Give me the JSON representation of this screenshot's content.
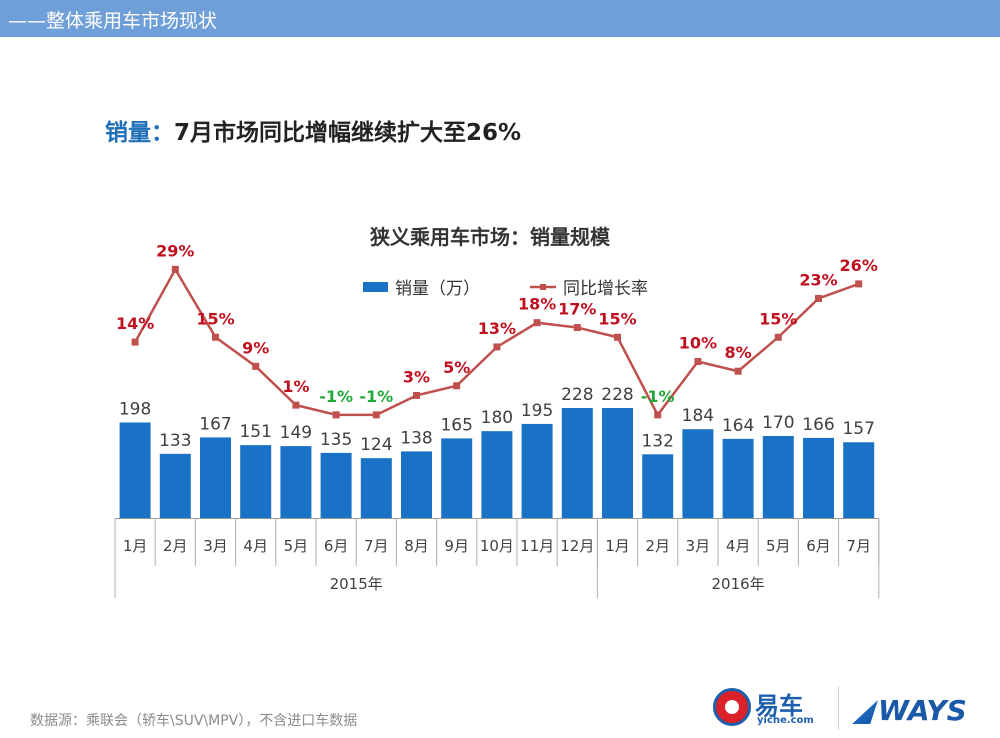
{
  "header": {
    "title": "——整体乘用车市场现状"
  },
  "headline": {
    "key": "销量：",
    "text": "7月市场同比增幅继续扩大至26%"
  },
  "colors": {
    "bar": "#1a72c6",
    "line": "#c0504d",
    "label_positive": "#c0101f",
    "label_negative": "#22a838",
    "topbar": "#6f9fd8"
  },
  "chart_data": {
    "type": "bar",
    "title": "狭义乘用车市场：销量规模",
    "legend": [
      "销量（万）",
      "同比增长率"
    ],
    "legend_position": "top-center",
    "categories": [
      "1月",
      "2月",
      "3月",
      "4月",
      "5月",
      "6月",
      "7月",
      "8月",
      "9月",
      "10月",
      "11月",
      "12月",
      "1月",
      "2月",
      "3月",
      "4月",
      "5月",
      "6月",
      "7月"
    ],
    "groups": [
      {
        "label": "2015年",
        "count": 12
      },
      {
        "label": "2016年",
        "count": 7
      }
    ],
    "series": [
      {
        "name": "销量（万）",
        "type": "bar",
        "values": [
          198,
          133,
          167,
          151,
          149,
          135,
          124,
          138,
          165,
          180,
          195,
          228,
          228,
          132,
          184,
          164,
          170,
          166,
          157
        ]
      },
      {
        "name": "同比增长率",
        "type": "line",
        "unit": "%",
        "values": [
          14,
          29,
          15,
          9,
          1,
          -1,
          -1,
          3,
          5,
          13,
          18,
          17,
          15,
          -1,
          10,
          8,
          15,
          23,
          26
        ]
      }
    ],
    "bar_ylim": [
      0,
      250
    ],
    "line_ylim": [
      -60,
      50
    ],
    "grid": false
  },
  "footer": {
    "source": "数据源：乘联会（轿车\\SUV\\MPV），不含进口车数据",
    "logo_yiche": "易车",
    "logo_yiche_sub": "yiche.com",
    "logo_ways": "WAYS"
  }
}
